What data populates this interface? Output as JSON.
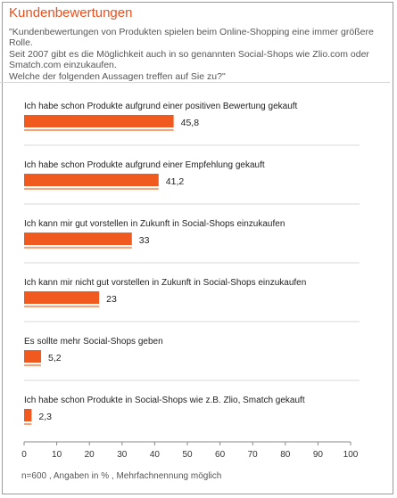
{
  "title": "Kundenbewertungen",
  "question_lines": [
    "\"Kundenbewertungen von Produkten spielen beim Online-Shopping eine immer größere Rolle.",
    "Seit 2007 gibt es die Möglichkeit auch in so genannten Social-Shops wie Zlio.com oder",
    "Smatch.com einzukaufen.",
    "Welche der folgenden Aussagen treffen auf Sie zu?\""
  ],
  "footnote": "n=600 , Angaben in % , Mehrfachnennung möglich",
  "colors": {
    "accent": "#e8501e",
    "bar": "#f05a1e",
    "bar_shadow": "#f6a27a"
  },
  "chart_data": {
    "type": "bar",
    "orientation": "horizontal",
    "categories": [
      "Ich habe schon Produkte aufgrund einer positiven Bewertung gekauft",
      "Ich habe schon Produkte aufgrund einer Empfehlung gekauft",
      "Ich kann mir gut vorstellen in Zukunft in Social-Shops einzukaufen",
      "Ich kann mir nicht gut vorstellen in Zukunft in Social-Shops einzukaufen",
      "Es sollte mehr Social-Shops geben",
      "Ich habe schon Produkte in Social-Shops wie z.B. Zlio, Smatch gekauft"
    ],
    "values": [
      45.8,
      41.2,
      33,
      23,
      5.2,
      2.3
    ],
    "value_labels": [
      "45,8",
      "41,2",
      "33",
      "23",
      "5,2",
      "2,3"
    ],
    "xlim": [
      0,
      100
    ],
    "xticks": [
      0,
      10,
      20,
      30,
      40,
      50,
      60,
      70,
      80,
      90,
      100
    ],
    "grid": false
  }
}
